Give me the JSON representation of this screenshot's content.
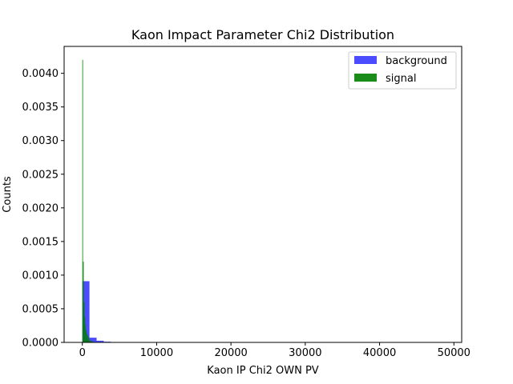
{
  "chart_data": {
    "type": "bar",
    "title": "Kaon Impact Parameter Chi2 Distribution",
    "xlabel": "Kaon IP Chi2 OWN PV",
    "ylabel": "Counts",
    "xlim": [
      -2450,
      51050
    ],
    "ylim": [
      0,
      0.0044
    ],
    "xticks": [
      0,
      10000,
      20000,
      30000,
      40000,
      50000
    ],
    "xtick_labels": [
      "0",
      "10000",
      "20000",
      "30000",
      "40000",
      "50000"
    ],
    "yticks": [
      0,
      0.0005,
      0.001,
      0.0015,
      0.002,
      0.0025,
      0.003,
      0.0035,
      0.004
    ],
    "ytick_labels": [
      "0.0000",
      "0.0005",
      "0.0010",
      "0.0015",
      "0.0020",
      "0.0025",
      "0.0030",
      "0.0035",
      "0.0040"
    ],
    "legend_position": "top-right",
    "grid": false,
    "series": [
      {
        "name": "background",
        "color": "#0000ff",
        "opacity": 0.7,
        "bins": [
          {
            "x0": 0,
            "x1": 960,
            "value": 0.00091
          },
          {
            "x0": 960,
            "x1": 1920,
            "value": 7e-05
          },
          {
            "x0": 1920,
            "x1": 2880,
            "value": 2.5e-05
          },
          {
            "x0": 2880,
            "x1": 3840,
            "value": 1e-05
          },
          {
            "x0": 3840,
            "x1": 4800,
            "value": 4e-06
          }
        ]
      },
      {
        "name": "signal",
        "color": "#008000",
        "opacity": 0.9,
        "bins": [
          {
            "x0": 0,
            "x1": 95,
            "value": 0.0042
          },
          {
            "x0": 95,
            "x1": 190,
            "value": 0.0012
          },
          {
            "x0": 190,
            "x1": 285,
            "value": 0.0006
          },
          {
            "x0": 285,
            "x1": 380,
            "value": 0.00038
          },
          {
            "x0": 380,
            "x1": 475,
            "value": 0.00026
          },
          {
            "x0": 475,
            "x1": 570,
            "value": 0.00018
          },
          {
            "x0": 570,
            "x1": 665,
            "value": 0.00013
          },
          {
            "x0": 665,
            "x1": 760,
            "value": 0.0001
          },
          {
            "x0": 760,
            "x1": 855,
            "value": 8e-05
          },
          {
            "x0": 855,
            "x1": 950,
            "value": 6e-05
          },
          {
            "x0": 950,
            "x1": 1140,
            "value": 3e-05
          },
          {
            "x0": 1140,
            "x1": 1500,
            "value": 1.5e-05
          }
        ]
      }
    ]
  }
}
